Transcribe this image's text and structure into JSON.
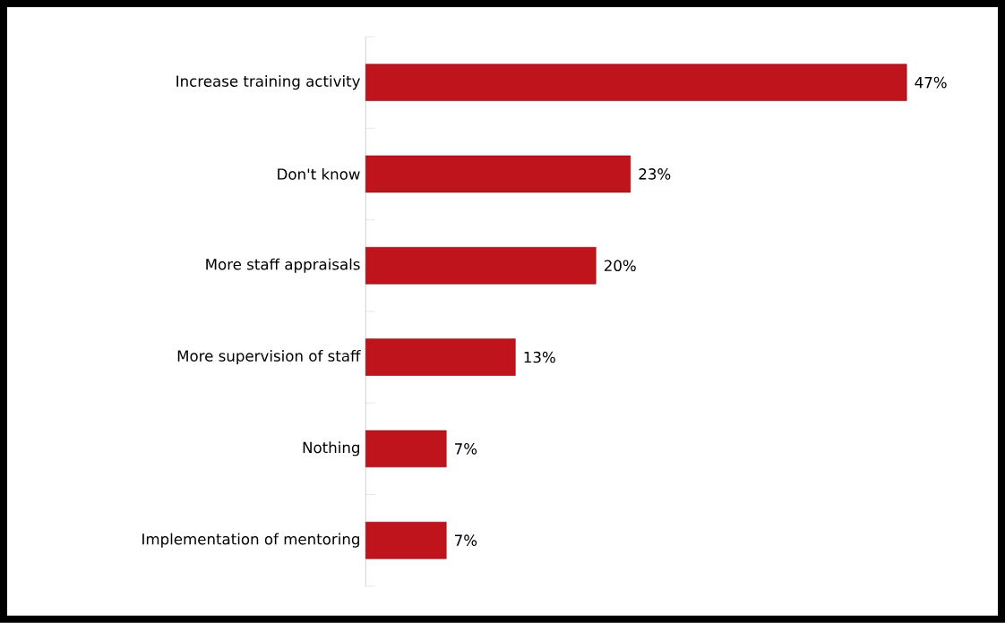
{
  "chart_data": {
    "type": "bar",
    "orientation": "horizontal",
    "categories": [
      "Increase training activity",
      "Don't know",
      "More staff appraisals",
      "More supervision of staff",
      "Nothing",
      "Implementation of mentoring"
    ],
    "values": [
      47,
      23,
      20,
      13,
      7,
      7
    ],
    "value_labels": [
      "47%",
      "23%",
      "20%",
      "13%",
      "7%",
      "7%"
    ],
    "color": "#c0141c"
  }
}
